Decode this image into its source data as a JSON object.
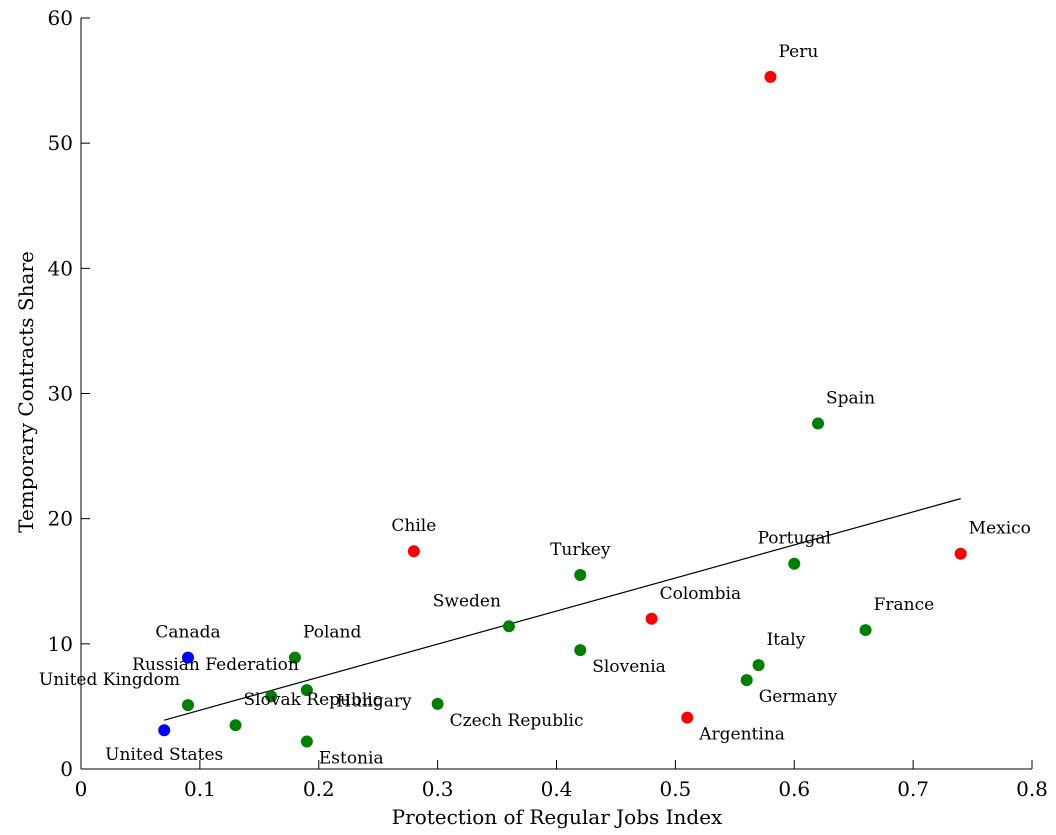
{
  "chart_data": {
    "type": "scatter",
    "title": "",
    "xlabel": "Protection of Regular Jobs Index",
    "ylabel": "Temporary Contracts Share",
    "xlim": [
      0,
      0.8
    ],
    "ylim": [
      0,
      60
    ],
    "grid": false,
    "x_ticks": [
      "0",
      "0.1",
      "0.2",
      "0.3",
      "0.4",
      "0.5",
      "0.6",
      "0.7",
      "0.8"
    ],
    "y_ticks": [
      "0",
      "10",
      "20",
      "30",
      "40",
      "50",
      "60"
    ],
    "x_tick_values": [
      0,
      0.1,
      0.2,
      0.3,
      0.4,
      0.5,
      0.6,
      0.7,
      0.8
    ],
    "y_tick_values": [
      0,
      10,
      20,
      30,
      40,
      50,
      60
    ],
    "colors": {
      "blue": "#0000ff",
      "green": "#008000",
      "red": "#ff0000"
    },
    "points": [
      {
        "label": "Peru",
        "x": 0.58,
        "y": 55.3,
        "color": "red",
        "label_pos": "above-right"
      },
      {
        "label": "Spain",
        "x": 0.62,
        "y": 27.6,
        "color": "green",
        "label_pos": "above-right"
      },
      {
        "label": "Chile",
        "x": 0.28,
        "y": 17.4,
        "color": "red",
        "label_pos": "above"
      },
      {
        "label": "Turkey",
        "x": 0.42,
        "y": 15.5,
        "color": "green",
        "label_pos": "above"
      },
      {
        "label": "Portugal",
        "x": 0.6,
        "y": 16.4,
        "color": "green",
        "label_pos": "above"
      },
      {
        "label": "Mexico",
        "x": 0.74,
        "y": 17.2,
        "color": "red",
        "label_pos": "above-right"
      },
      {
        "label": "Sweden",
        "x": 0.36,
        "y": 11.4,
        "color": "green",
        "label_pos": "above-left"
      },
      {
        "label": "Colombia",
        "x": 0.48,
        "y": 12.0,
        "color": "red",
        "label_pos": "above-right"
      },
      {
        "label": "France",
        "x": 0.66,
        "y": 11.1,
        "color": "green",
        "label_pos": "above-right"
      },
      {
        "label": "Canada",
        "x": 0.09,
        "y": 8.9,
        "color": "blue",
        "label_pos": "above"
      },
      {
        "label": "Poland",
        "x": 0.18,
        "y": 8.9,
        "color": "green",
        "label_pos": "above-right"
      },
      {
        "label": "Slovenia",
        "x": 0.42,
        "y": 9.5,
        "color": "green",
        "label_pos": "below-right"
      },
      {
        "label": "Italy",
        "x": 0.57,
        "y": 8.3,
        "color": "green",
        "label_pos": "above-right"
      },
      {
        "label": "United Kingdom",
        "x": 0.09,
        "y": 5.1,
        "color": "green",
        "label_pos": "above-left"
      },
      {
        "label": "Russian Federation",
        "x": 0.19,
        "y": 6.3,
        "color": "green",
        "label_pos": "above-left"
      },
      {
        "label": "Hungary",
        "x": 0.16,
        "y": 5.8,
        "color": "green",
        "label_pos": "custom-hungary"
      },
      {
        "label": "Germany",
        "x": 0.56,
        "y": 7.1,
        "color": "green",
        "label_pos": "below-right"
      },
      {
        "label": "Czech Republic",
        "x": 0.3,
        "y": 5.2,
        "color": "green",
        "label_pos": "below-right"
      },
      {
        "label": "Slovak Republic",
        "x": 0.13,
        "y": 3.5,
        "color": "green",
        "label_pos": "above-right"
      },
      {
        "label": "Argentina",
        "x": 0.51,
        "y": 4.1,
        "color": "red",
        "label_pos": "below-right"
      },
      {
        "label": "United States",
        "x": 0.07,
        "y": 3.1,
        "color": "blue",
        "label_pos": "below"
      },
      {
        "label": "Estonia",
        "x": 0.19,
        "y": 2.2,
        "color": "green",
        "label_pos": "below-right"
      }
    ],
    "fit_line": {
      "x": [
        0.07,
        0.74
      ],
      "y": [
        3.9,
        21.6
      ]
    }
  }
}
